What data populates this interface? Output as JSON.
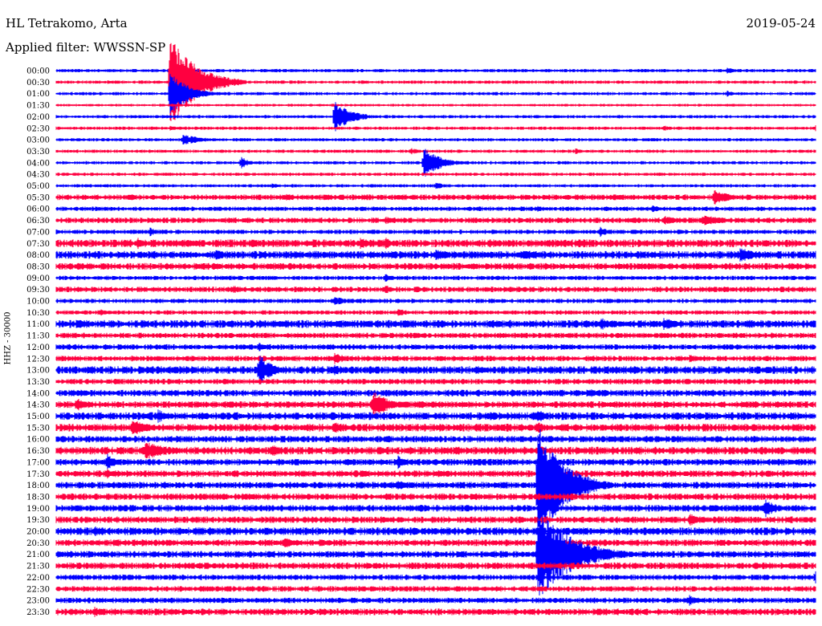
{
  "header": {
    "station": "HL Tetrakomo, Arta",
    "date": "2019-05-24",
    "filter_label": "Applied filter:",
    "filter_value": "WWSSN-SP"
  },
  "channel_label": "HHZ - 30000",
  "colors": {
    "blue": "#0000ff",
    "red": "#ff0040",
    "text": "#000000",
    "background": "#ffffff"
  },
  "chart_data": {
    "type": "helicorder",
    "title": "HL Tetrakomo, Arta",
    "date": "2019-05-24",
    "filter": "WWSSN-SP",
    "channel": "HHZ - 30000",
    "ylabel": "HHZ - 30000",
    "xlabel": "",
    "grid": false,
    "trace_colors": [
      "#0000ff",
      "#ff0040"
    ],
    "rows": [
      "00:00",
      "00:30",
      "01:00",
      "01:30",
      "02:00",
      "02:30",
      "03:00",
      "03:30",
      "04:00",
      "04:30",
      "05:00",
      "05:30",
      "06:00",
      "06:30",
      "07:00",
      "07:30",
      "08:00",
      "08:30",
      "09:00",
      "09:30",
      "10:00",
      "10:30",
      "11:00",
      "11:30",
      "12:00",
      "12:30",
      "13:00",
      "13:30",
      "14:00",
      "14:30",
      "15:00",
      "15:30",
      "16:00",
      "16:30",
      "17:00",
      "17:30",
      "18:00",
      "18:30",
      "19:00",
      "19:30",
      "20:00",
      "20:30",
      "21:00",
      "21:30",
      "22:00",
      "22:30",
      "23:00",
      "23:30"
    ],
    "row_noise": [
      1.5,
      1.5,
      1.5,
      1.2,
      1.5,
      1.5,
      1.5,
      1.5,
      1.5,
      1.5,
      1.5,
      2.5,
      2.0,
      2.5,
      2.0,
      3.5,
      3.5,
      3.0,
      2.0,
      2.5,
      2.0,
      2.0,
      3.5,
      2.5,
      2.5,
      2.5,
      3.5,
      2.5,
      3.0,
      3.0,
      3.5,
      3.5,
      3.0,
      3.5,
      3.0,
      3.0,
      3.0,
      3.0,
      3.0,
      3.0,
      3.5,
      3.0,
      3.0,
      3.0,
      2.5,
      2.5,
      2.5,
      3.0
    ],
    "events": [
      {
        "row": "00:00",
        "minute": 26.5,
        "amplitude": 4,
        "duration_min": 1.5
      },
      {
        "row": "00:00",
        "minute": 30.5,
        "amplitude": 2.5,
        "duration_min": 1
      },
      {
        "row": "00:30",
        "minute": 4.5,
        "amplitude": 60,
        "duration_min": 3
      },
      {
        "row": "01:00",
        "minute": 4.5,
        "amplitude": 30,
        "duration_min": 2
      },
      {
        "row": "01:00",
        "minute": 25,
        "amplitude": 2.5,
        "duration_min": 1
      },
      {
        "row": "01:00",
        "minute": 26.5,
        "amplitude": 4,
        "duration_min": 1
      },
      {
        "row": "02:00",
        "minute": 11,
        "amplitude": 20,
        "duration_min": 2
      },
      {
        "row": "02:30",
        "minute": 4.5,
        "amplitude": 3,
        "duration_min": 1
      },
      {
        "row": "02:30",
        "minute": 24,
        "amplitude": 4,
        "duration_min": 1
      },
      {
        "row": "02:30",
        "minute": 30,
        "amplitude": 4,
        "duration_min": 1
      },
      {
        "row": "03:00",
        "minute": 5,
        "amplitude": 7,
        "duration_min": 2.5
      },
      {
        "row": "03:30",
        "minute": 20.5,
        "amplitude": 4,
        "duration_min": 1
      },
      {
        "row": "03:30",
        "minute": 14,
        "amplitude": 5,
        "duration_min": 1
      },
      {
        "row": "04:00",
        "minute": 14.5,
        "amplitude": 20,
        "duration_min": 2
      },
      {
        "row": "04:00",
        "minute": 7.3,
        "amplitude": 8,
        "duration_min": 1
      },
      {
        "row": "04:30",
        "minute": 26,
        "amplitude": 2.5,
        "duration_min": 1
      },
      {
        "row": "05:00",
        "minute": 8.5,
        "amplitude": 4,
        "duration_min": 1
      },
      {
        "row": "05:00",
        "minute": 15,
        "amplitude": 5,
        "duration_min": 1
      },
      {
        "row": "05:30",
        "minute": 13.5,
        "amplitude": 4,
        "duration_min": 1
      },
      {
        "row": "05:30",
        "minute": 9,
        "amplitude": 5,
        "duration_min": 1.5
      },
      {
        "row": "05:30",
        "minute": 17,
        "amplitude": 5,
        "duration_min": 1
      },
      {
        "row": "05:30",
        "minute": 26,
        "amplitude": 10,
        "duration_min": 2
      },
      {
        "row": "05:30",
        "minute": 22,
        "amplitude": 5,
        "duration_min": 1.5
      },
      {
        "row": "06:00",
        "minute": 23.5,
        "amplitude": 5,
        "duration_min": 1.5
      },
      {
        "row": "06:00",
        "minute": 19,
        "amplitude": 4,
        "duration_min": 1
      },
      {
        "row": "06:30",
        "minute": 13,
        "amplitude": 5,
        "duration_min": 2
      },
      {
        "row": "06:30",
        "minute": 24,
        "amplitude": 6,
        "duration_min": 2
      },
      {
        "row": "06:30",
        "minute": 25.5,
        "amplitude": 8,
        "duration_min": 2.5
      },
      {
        "row": "07:00",
        "minute": 21.5,
        "amplitude": 7,
        "duration_min": 1
      },
      {
        "row": "07:00",
        "minute": 3.7,
        "amplitude": 6,
        "duration_min": 1
      },
      {
        "row": "07:30",
        "minute": 3.2,
        "amplitude": 8,
        "duration_min": 1
      },
      {
        "row": "07:30",
        "minute": 12,
        "amplitude": 7,
        "duration_min": 2
      },
      {
        "row": "07:30",
        "minute": 13,
        "amplitude": 9,
        "duration_min": 1
      },
      {
        "row": "08:00",
        "minute": 6.3,
        "amplitude": 8,
        "duration_min": 1
      },
      {
        "row": "08:00",
        "minute": 15,
        "amplitude": 7,
        "duration_min": 2
      },
      {
        "row": "08:00",
        "minute": 18.5,
        "amplitude": 7,
        "duration_min": 2
      },
      {
        "row": "08:00",
        "minute": 27,
        "amplitude": 10,
        "duration_min": 2
      },
      {
        "row": "08:30",
        "minute": 0.8,
        "amplitude": 6,
        "duration_min": 1
      },
      {
        "row": "08:30",
        "minute": 23,
        "amplitude": 5,
        "duration_min": 1
      },
      {
        "row": "09:00",
        "minute": 13,
        "amplitude": 6,
        "duration_min": 1
      },
      {
        "row": "09:00",
        "minute": 31,
        "amplitude": 8,
        "duration_min": 1
      },
      {
        "row": "09:30",
        "minute": 7,
        "amplitude": 6,
        "duration_min": 1
      },
      {
        "row": "09:30",
        "minute": 13,
        "amplitude": 6,
        "duration_min": 1
      },
      {
        "row": "10:00",
        "minute": 11,
        "amplitude": 6,
        "duration_min": 1.5
      },
      {
        "row": "10:30",
        "minute": 1.7,
        "amplitude": 5,
        "duration_min": 1
      },
      {
        "row": "10:30",
        "minute": 13.5,
        "amplitude": 5,
        "duration_min": 1.5
      },
      {
        "row": "11:00",
        "minute": 0.8,
        "amplitude": 6,
        "duration_min": 1.5
      },
      {
        "row": "11:00",
        "minute": 21.5,
        "amplitude": 8,
        "duration_min": 2
      },
      {
        "row": "11:00",
        "minute": 24,
        "amplitude": 9,
        "duration_min": 1.5
      },
      {
        "row": "12:00",
        "minute": 8,
        "amplitude": 6,
        "duration_min": 1
      },
      {
        "row": "12:30",
        "minute": 11,
        "amplitude": 8,
        "duration_min": 1.5
      },
      {
        "row": "12:30",
        "minute": 25,
        "amplitude": 5,
        "duration_min": 2
      },
      {
        "row": "13:00",
        "minute": 8,
        "amplitude": 22,
        "duration_min": 1.5
      },
      {
        "row": "13:00",
        "minute": 11,
        "amplitude": 8,
        "duration_min": 1
      },
      {
        "row": "14:00",
        "minute": 21,
        "amplitude": 7,
        "duration_min": 1.5
      },
      {
        "row": "14:00",
        "minute": 18,
        "amplitude": 5,
        "duration_min": 1
      },
      {
        "row": "14:30",
        "minute": 12.5,
        "amplitude": 18,
        "duration_min": 2
      },
      {
        "row": "14:30",
        "minute": 0.8,
        "amplitude": 10,
        "duration_min": 1
      },
      {
        "row": "15:00",
        "minute": 4,
        "amplitude": 10,
        "duration_min": 1
      },
      {
        "row": "15:00",
        "minute": 19,
        "amplitude": 10,
        "duration_min": 1
      },
      {
        "row": "15:30",
        "minute": 3,
        "amplitude": 12,
        "duration_min": 1.5
      },
      {
        "row": "15:30",
        "minute": 11,
        "amplitude": 10,
        "duration_min": 1
      },
      {
        "row": "15:30",
        "minute": 19,
        "amplitude": 10,
        "duration_min": 1
      },
      {
        "row": "16:00",
        "minute": 31,
        "amplitude": 8,
        "duration_min": 1
      },
      {
        "row": "16:30",
        "minute": 3.5,
        "amplitude": 12,
        "duration_min": 3
      },
      {
        "row": "16:30",
        "minute": 8.5,
        "amplitude": 10,
        "duration_min": 1
      },
      {
        "row": "16:30",
        "minute": 19,
        "amplitude": 10,
        "duration_min": 1
      },
      {
        "row": "17:00",
        "minute": 2,
        "amplitude": 12,
        "duration_min": 1
      },
      {
        "row": "17:00",
        "minute": 13.5,
        "amplitude": 9,
        "duration_min": 1
      },
      {
        "row": "17:30",
        "minute": 2,
        "amplitude": 8,
        "duration_min": 1
      },
      {
        "row": "18:00",
        "minute": 13.5,
        "amplitude": 8,
        "duration_min": 1
      },
      {
        "row": "18:00",
        "minute": 19,
        "amplitude": 80,
        "duration_min": 3
      },
      {
        "row": "19:00",
        "minute": 28,
        "amplitude": 12,
        "duration_min": 1.5
      },
      {
        "row": "19:30",
        "minute": 25,
        "amplitude": 8,
        "duration_min": 2
      },
      {
        "row": "20:00",
        "minute": 1.5,
        "amplitude": 8,
        "duration_min": 1
      },
      {
        "row": "20:00",
        "minute": 5.5,
        "amplitude": 7,
        "duration_min": 1
      },
      {
        "row": "20:30",
        "minute": 9,
        "amplitude": 9,
        "duration_min": 1
      },
      {
        "row": "21:00",
        "minute": 19,
        "amplitude": 60,
        "duration_min": 4
      },
      {
        "row": "22:00",
        "minute": 30,
        "amplitude": 12,
        "duration_min": 1
      },
      {
        "row": "23:00",
        "minute": 25,
        "amplitude": 8,
        "duration_min": 1
      },
      {
        "row": "23:30",
        "minute": 1.5,
        "amplitude": 8,
        "duration_min": 1
      }
    ]
  }
}
